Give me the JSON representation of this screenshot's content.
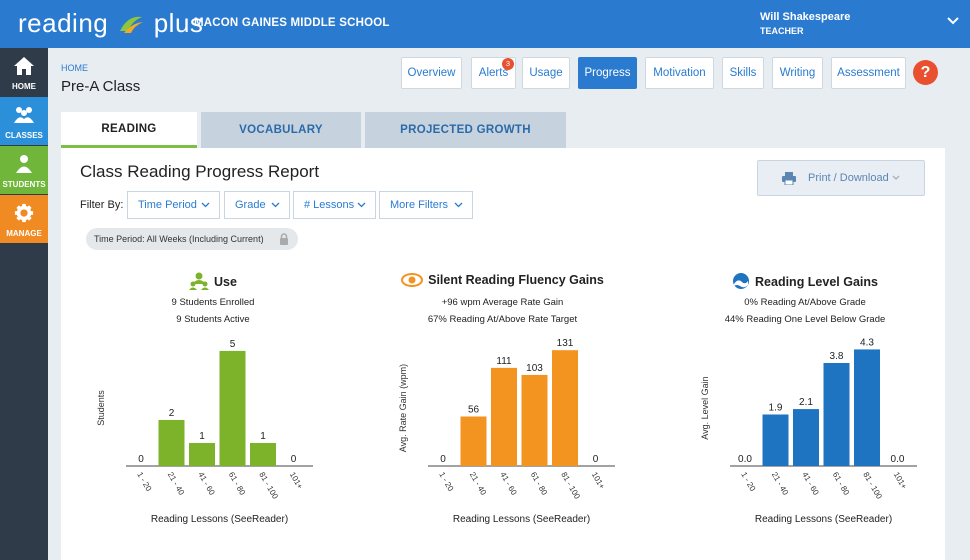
{
  "header": {
    "logo_left": "reading",
    "logo_right": "plus",
    "school": "MACON GAINES MIDDLE SCHOOL",
    "user_name": "Will Shakespeare",
    "user_role": "TEACHER"
  },
  "sidebar": {
    "items": [
      {
        "label": "HOME",
        "icon": "home-icon"
      },
      {
        "label": "CLASSES",
        "icon": "classes-icon"
      },
      {
        "label": "STUDENTS",
        "icon": "students-icon"
      },
      {
        "label": "MANAGE",
        "icon": "gear-icon"
      }
    ]
  },
  "page": {
    "breadcrumb": "HOME",
    "title": "Pre-A Class"
  },
  "nav": {
    "buttons": [
      "Overview",
      "Alerts",
      "Usage",
      "Progress",
      "Motivation",
      "Skills",
      "Writing",
      "Assessment"
    ],
    "active": "Progress",
    "alerts_count": "3",
    "help": "?"
  },
  "tabs": {
    "items": [
      "READING",
      "VOCABULARY",
      "PROJECTED GROWTH"
    ],
    "active": "READING"
  },
  "report": {
    "title": "Class Reading Progress Report",
    "print_label": "Print / Download",
    "filter_label": "Filter By:",
    "filters": [
      "Time Period",
      "Grade",
      "# Lessons",
      "More Filters"
    ],
    "chip": "Time Period: All Weeks (Including Current)"
  },
  "colors": {
    "blue": "#2a7bd0",
    "green": "#7cb32a",
    "orange": "#f39320",
    "chart_blue": "#1f74c2"
  },
  "chart_data": [
    {
      "type": "bar",
      "title": "Use",
      "icon": "users-icon",
      "subtitles": [
        "9 Students Enrolled",
        "9 Students Active"
      ],
      "categories": [
        "1 - 20",
        "21 - 40",
        "41 - 60",
        "61 - 80",
        "81 - 100",
        "101+"
      ],
      "values": [
        0,
        2,
        1,
        5,
        1,
        0
      ],
      "labels": [
        "0",
        "2",
        "1",
        "5",
        "1",
        "0"
      ],
      "ylabel": "Students",
      "xlabel": "Reading Lessons (SeeReader)",
      "ylim": [
        0,
        5.3
      ],
      "color": "#7cb32a"
    },
    {
      "type": "bar",
      "title": "Silent Reading Fluency Gains",
      "icon": "eye-icon",
      "subtitles": [
        "+96 wpm Average Rate Gain",
        "67% Reading At/Above Rate Target"
      ],
      "categories": [
        "1 - 20",
        "21 - 40",
        "41 - 60",
        "61 - 80",
        "81 - 100",
        "101+"
      ],
      "values": [
        0,
        56,
        111,
        103,
        131,
        0
      ],
      "labels": [
        "0",
        "56",
        "111",
        "103",
        "131",
        "0"
      ],
      "ylabel": "Avg. Rate Gain (wpm)",
      "xlabel": "Reading Lessons (SeeReader)",
      "ylim": [
        0,
        138
      ],
      "color": "#f39320"
    },
    {
      "type": "bar",
      "title": "Reading Level Gains",
      "icon": "wave-icon",
      "subtitles": [
        "0% Reading At/Above Grade",
        "44% Reading One Level Below Grade"
      ],
      "categories": [
        "1 - 20",
        "21 - 40",
        "41 - 60",
        "61 - 80",
        "81 - 100",
        "101+"
      ],
      "values": [
        0.0,
        1.9,
        2.1,
        3.8,
        4.3,
        0.0
      ],
      "labels": [
        "0.0",
        "1.9",
        "2.1",
        "3.8",
        "4.3",
        "0.0"
      ],
      "ylabel": "Avg. Level Gain",
      "xlabel": "Reading Lessons (SeeReader)",
      "ylim": [
        0,
        4.5
      ],
      "color": "#1f74c2"
    }
  ]
}
